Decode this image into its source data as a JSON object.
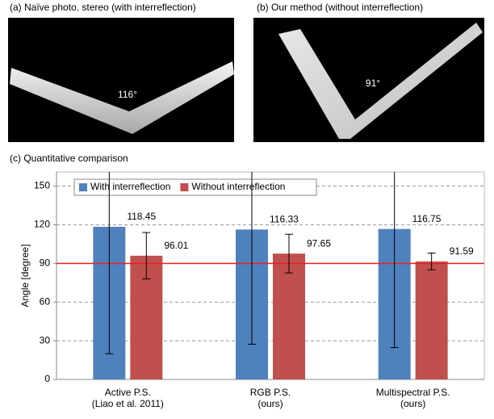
{
  "panels": [
    {
      "caption": "(a) Naïve photo. stereo (with interreflection)",
      "angle_label": "116°"
    },
    {
      "caption": "(b) Our method (without interreflection)",
      "angle_label": "91°"
    }
  ],
  "section_caption": "(c) Quantitative comparison",
  "chart_data": {
    "type": "bar",
    "y_label": "Angle [degree]",
    "categories": [
      [
        "Active P.S.",
        "(Liao et al. 2011)"
      ],
      [
        "RGB P.S.",
        "(ours)"
      ],
      [
        "Multispectral P.S.",
        "(ours)"
      ]
    ],
    "series": [
      {
        "name": "With interreflection",
        "color": "#4f81bd",
        "values": [
          118.45,
          116.33,
          116.75
        ],
        "errors": [
          98.5,
          89,
          92
        ]
      },
      {
        "name": "Without interreflection",
        "color": "#c0504d",
        "values": [
          96.01,
          97.65,
          91.59
        ],
        "errors": [
          18,
          15,
          6.5
        ]
      }
    ],
    "reference_line": {
      "value": 90,
      "color": "#e8201e"
    },
    "ylim": [
      0,
      161
    ],
    "yticks": [
      0,
      30,
      60,
      90,
      120,
      150
    ],
    "grid": true,
    "legend": "top-left"
  }
}
